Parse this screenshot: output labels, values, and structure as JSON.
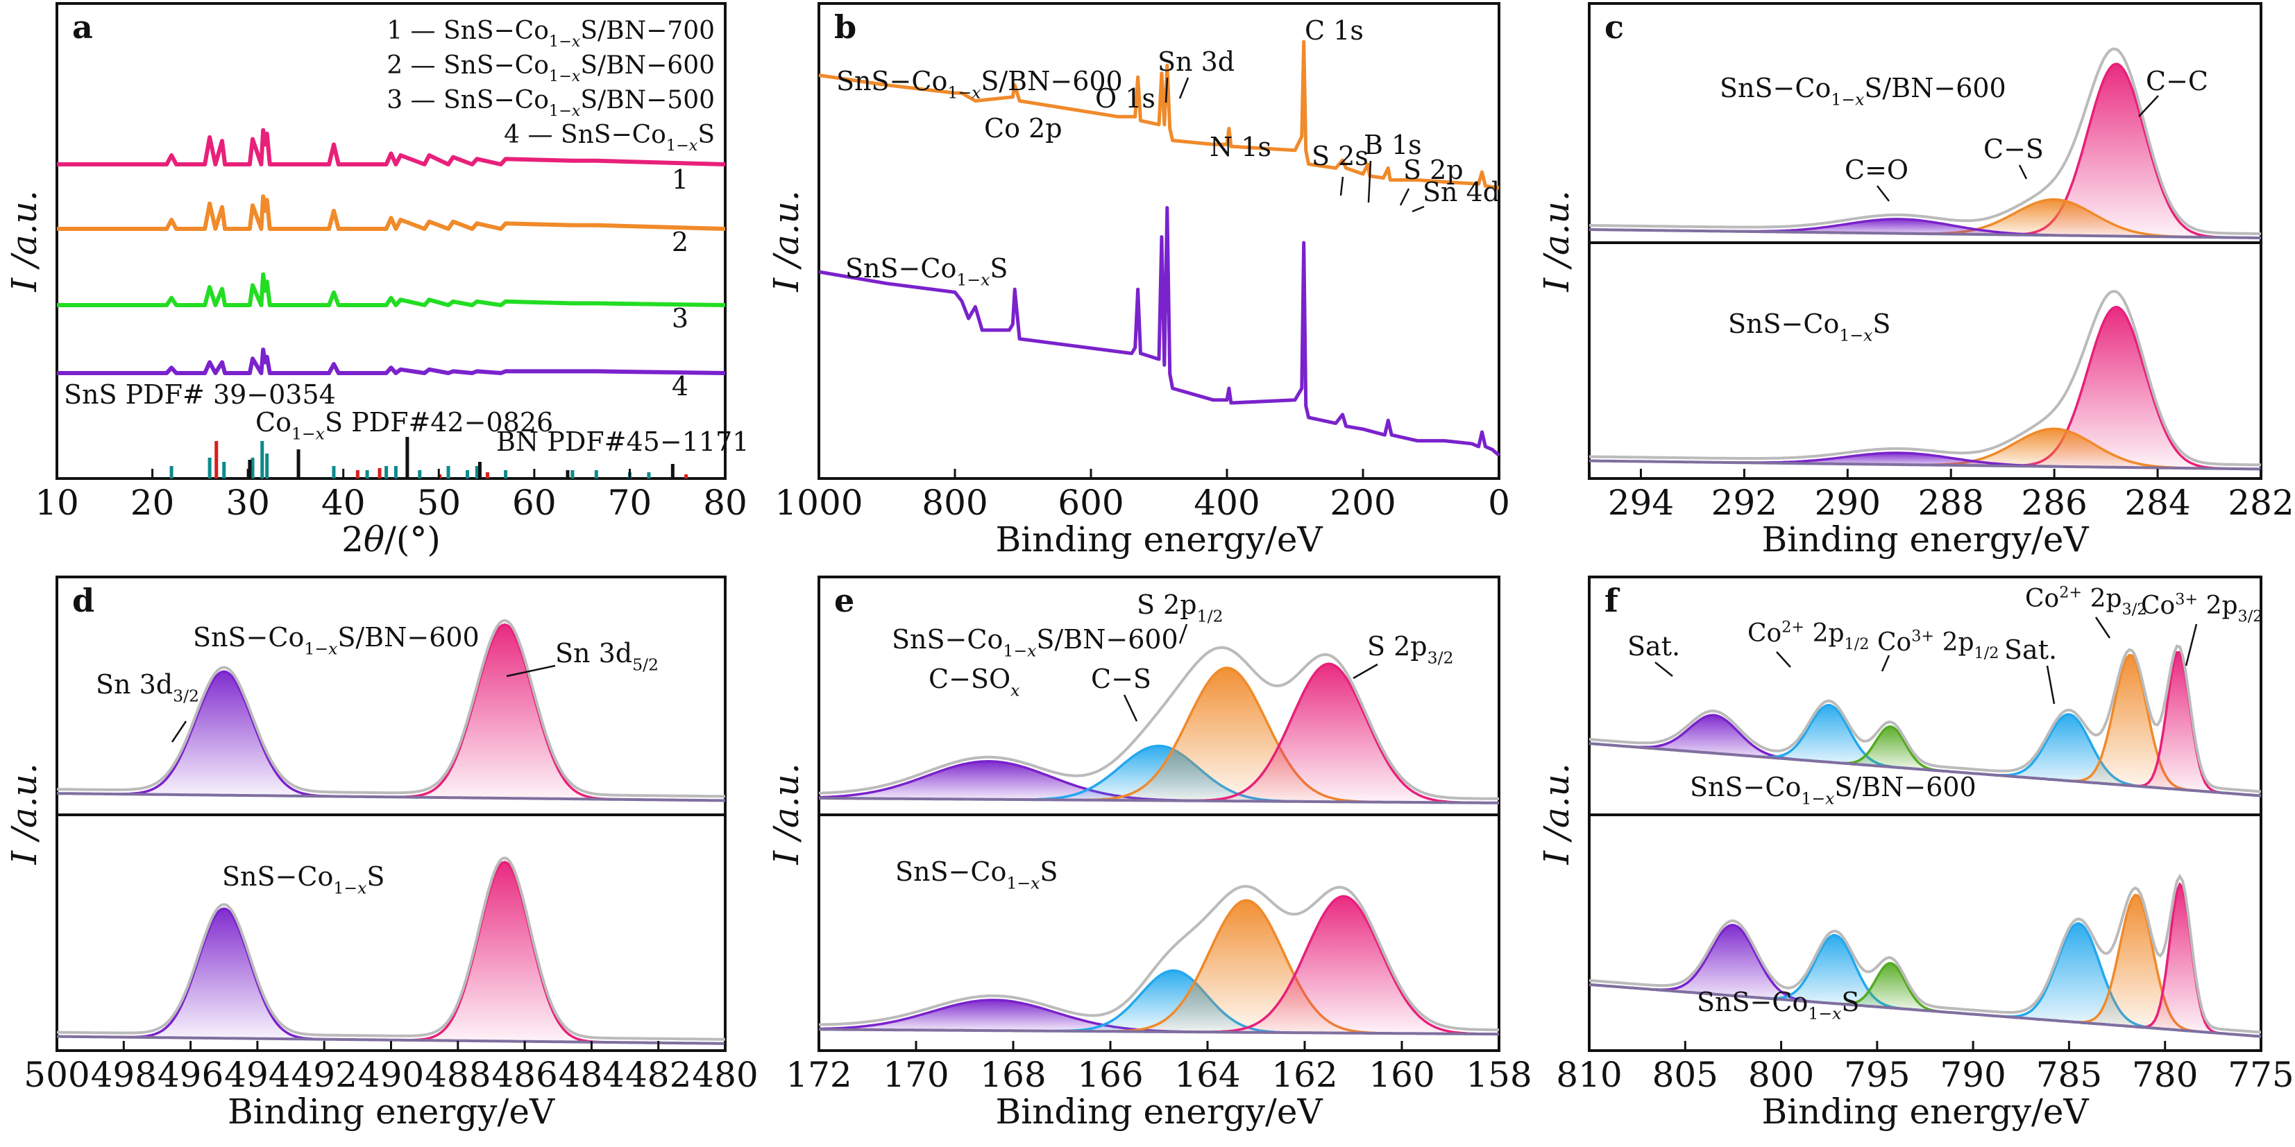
{
  "chart_data": [
    {
      "id": "a",
      "type": "line",
      "panel_label": "a",
      "xlabel": "2θ/(°)",
      "ylabel": "I /a.u.",
      "xlim": [
        10,
        80
      ],
      "xticks": [
        10,
        20,
        30,
        40,
        50,
        60,
        70,
        80
      ],
      "legend": [
        "1 — SnS−Co1−xS/BN−700",
        "2 — SnS−Co1−xS/BN−600",
        "3 — SnS−Co1−xS/BN−500",
        "4 — SnS−Co1−xS"
      ],
      "series": [
        {
          "name": "SnS−Co1−xS/BN−700",
          "label": "1",
          "color": "#e8207a",
          "x": [
            10,
            21.5,
            22,
            22.5,
            25.5,
            26,
            26.6,
            27.3,
            27.6,
            30.2,
            30.5,
            31.4,
            31.6,
            31.8,
            32,
            32.3,
            38.5,
            39,
            39.5,
            44.5,
            45,
            45.5,
            46,
            48.5,
            49,
            51,
            51.5,
            53.5,
            54,
            56.5,
            57,
            64,
            66.5,
            80
          ],
          "y": [
            0,
            0,
            5,
            0,
            0,
            15,
            0,
            13,
            0,
            0,
            14,
            0,
            19,
            11,
            17,
            0,
            0,
            11,
            0,
            0,
            6,
            0,
            5,
            0,
            5,
            0,
            4,
            0,
            3,
            0,
            3,
            2,
            2,
            0
          ]
        },
        {
          "name": "SnS−Co1−xS/BN−600",
          "label": "2",
          "color": "#f08a2a",
          "x": [
            10,
            21.5,
            22,
            22.5,
            25.5,
            26,
            26.6,
            27.3,
            27.6,
            30.2,
            30.5,
            31.4,
            31.6,
            31.8,
            32,
            32.3,
            38.5,
            39,
            39.5,
            44.5,
            45,
            45.5,
            46,
            48.5,
            49,
            51,
            51.5,
            53.5,
            54,
            56.5,
            57,
            64,
            66.5,
            80
          ],
          "y": [
            0,
            0,
            5,
            0,
            0,
            14,
            0,
            12,
            0,
            0,
            13,
            0,
            18,
            10,
            16,
            0,
            0,
            10,
            0,
            0,
            6,
            0,
            5,
            0,
            4,
            0,
            4,
            0,
            3,
            0,
            3,
            2,
            2,
            0
          ]
        },
        {
          "name": "SnS−Co1−xS/BN−500",
          "label": "3",
          "color": "#22dd22",
          "x": [
            10,
            21.5,
            22,
            22.5,
            25.5,
            26,
            26.6,
            27.3,
            27.6,
            30.2,
            30.5,
            31.4,
            31.6,
            31.8,
            32,
            32.3,
            38.5,
            39,
            39.5,
            44.5,
            45,
            45.5,
            46,
            48.5,
            49,
            51,
            51.5,
            53.5,
            54,
            56.5,
            57,
            64,
            66.5,
            80
          ],
          "y": [
            0,
            0,
            4,
            0,
            0,
            10,
            0,
            9,
            0,
            0,
            11,
            0,
            17,
            8,
            13,
            0,
            0,
            7,
            0,
            0,
            4,
            0,
            3,
            0,
            3,
            0,
            2,
            0,
            2,
            0,
            2,
            1,
            1,
            0
          ]
        },
        {
          "name": "SnS−Co1−xS",
          "label": "4",
          "color": "#7a22cc",
          "x": [
            10,
            21.5,
            22,
            22.5,
            25.5,
            26,
            26.6,
            27.3,
            27.6,
            30.2,
            30.5,
            31.4,
            31.6,
            31.8,
            32,
            32.3,
            38.5,
            39,
            39.5,
            44.5,
            45,
            45.5,
            46,
            48.5,
            49,
            51,
            51.5,
            53.5,
            54,
            56.5,
            57,
            64,
            66.5,
            80
          ],
          "y": [
            0,
            0,
            3,
            0,
            0,
            6,
            0,
            6,
            0,
            0,
            8,
            0,
            13,
            6,
            9,
            0,
            0,
            5,
            0,
            0,
            3,
            0,
            2,
            0,
            2,
            0,
            1,
            0,
            1,
            0,
            1,
            1,
            1,
            0
          ]
        }
      ],
      "references": [
        {
          "name": "SnS PDF# 39−0354",
          "color": "#0e8a8a",
          "positions": [
            22,
            26,
            27.5,
            30.5,
            31.5,
            32,
            39,
            42.5,
            44.5,
            45.5,
            48,
            51,
            53,
            54,
            57,
            64,
            66.5,
            70,
            72
          ],
          "heights": [
            0.3,
            0.5,
            0.4,
            0.5,
            0.9,
            0.6,
            0.3,
            0.2,
            0.3,
            0.3,
            0.2,
            0.3,
            0.2,
            0.3,
            0.2,
            0.2,
            0.2,
            0.15,
            0.15
          ]
        },
        {
          "name": "Co1−xS PDF#42−0826",
          "color": "#111111",
          "positions": [
            30.2,
            35.3,
            46.7,
            54.3,
            63.5,
            74.5
          ],
          "heights": [
            0.45,
            0.7,
            1.0,
            0.4,
            0.2,
            0.35
          ]
        },
        {
          "name": "BN PDF#45−1171",
          "color": "#d81e1e",
          "positions": [
            26.7,
            41.5,
            43.8,
            50.1,
            55.1,
            75.9
          ],
          "heights": [
            0.9,
            0.2,
            0.25,
            0.1,
            0.15,
            0.1
          ]
        }
      ]
    },
    {
      "id": "b",
      "type": "line",
      "panel_label": "b",
      "xlabel": "Binding energy/eV",
      "ylabel": "I /a.u.",
      "xlim": [
        1000,
        0
      ],
      "xticks": [
        1000,
        800,
        600,
        400,
        200,
        0
      ],
      "series": [
        {
          "name": "SnS−Co1−xS/BN−600",
          "color": "#f08a2a",
          "x": [
            1000,
            900,
            800,
            790,
            780,
            770,
            715,
            712,
            705,
            560,
            535,
            531,
            527,
            500,
            496,
            492,
            488,
            484,
            480,
            420,
            400,
            397,
            394,
            300,
            290,
            287,
            284,
            280,
            240,
            230,
            225,
            200,
            193,
            190,
            170,
            163,
            160,
            140,
            120,
            80,
            30,
            25,
            20,
            0
          ],
          "y": [
            0.83,
            0.78,
            0.74,
            0.74,
            0.72,
            0.7,
            0.72,
            0.78,
            0.7,
            0.62,
            0.62,
            0.82,
            0.6,
            0.58,
            0.84,
            0.58,
            0.88,
            0.56,
            0.5,
            0.48,
            0.48,
            0.56,
            0.47,
            0.45,
            0.52,
            1.0,
            0.45,
            0.38,
            0.36,
            0.4,
            0.36,
            0.33,
            0.38,
            0.32,
            0.31,
            0.36,
            0.3,
            0.3,
            0.3,
            0.29,
            0.28,
            0.34,
            0.27,
            0.26
          ]
        },
        {
          "name": "SnS−Co1−xS",
          "color": "#7a22cc",
          "x": [
            1000,
            900,
            800,
            790,
            780,
            770,
            760,
            720,
            715,
            712,
            705,
            540,
            535,
            531,
            527,
            500,
            496,
            492,
            488,
            484,
            480,
            420,
            400,
            397,
            394,
            300,
            290,
            287,
            284,
            280,
            240,
            230,
            225,
            200,
            168,
            163,
            158,
            120,
            80,
            40,
            30,
            25,
            20,
            10,
            0
          ],
          "y": [
            0.4,
            0.36,
            0.33,
            0.3,
            0.24,
            0.28,
            0.2,
            0.2,
            0.22,
            0.34,
            0.17,
            0.12,
            0.14,
            0.34,
            0.12,
            0.1,
            0.52,
            0.08,
            0.62,
            0.05,
            0.0,
            -0.04,
            -0.04,
            0.0,
            -0.05,
            -0.04,
            0.0,
            0.5,
            -0.06,
            -0.1,
            -0.12,
            -0.09,
            -0.13,
            -0.14,
            -0.16,
            -0.11,
            -0.16,
            -0.18,
            -0.18,
            -0.19,
            -0.2,
            -0.15,
            -0.2,
            -0.21,
            -0.23
          ]
        }
      ]
    },
    {
      "id": "c",
      "type": "area",
      "panel_label": "c",
      "xlabel": "Binding energy/eV",
      "ylabel": "I /a.u.",
      "xlim": [
        295,
        282
      ],
      "xticks": [
        294,
        292,
        290,
        288,
        286,
        284,
        282
      ],
      "subplots": [
        {
          "sample": "SnS−Co1−xS/BN−600",
          "components": [
            {
              "label": "C−C",
              "center": 284.8,
              "fwhm": 1.3,
              "height": 0.72,
              "color": "#e8207a"
            },
            {
              "label": "C−S",
              "center": 286.0,
              "fwhm": 1.8,
              "height": 0.15,
              "color": "#f08a2a"
            },
            {
              "label": "C=O",
              "center": 289.0,
              "fwhm": 2.4,
              "height": 0.06,
              "color": "#7a22cc"
            }
          ]
        },
        {
          "sample": "SnS−Co1−xS",
          "components": [
            {
              "label": "C−C",
              "center": 284.8,
              "fwhm": 1.3,
              "height": 0.68,
              "color": "#e8207a"
            },
            {
              "label": "C−S",
              "center": 286.0,
              "fwhm": 1.8,
              "height": 0.16,
              "color": "#f08a2a"
            },
            {
              "label": "C=O",
              "center": 289.0,
              "fwhm": 2.4,
              "height": 0.05,
              "color": "#7a22cc"
            }
          ]
        }
      ]
    },
    {
      "id": "d",
      "type": "area",
      "panel_label": "d",
      "xlabel": "Binding energy/eV",
      "ylabel": "I /a.u.",
      "xlim": [
        500,
        480
      ],
      "xticks": [
        500,
        498,
        496,
        494,
        492,
        490,
        488,
        486,
        484,
        482,
        480
      ],
      "subplots": [
        {
          "sample": "SnS−Co1−xS/BN−600",
          "components": [
            {
              "label": "Sn 3d3/2",
              "center": 495.0,
              "fwhm": 2.0,
              "height": 0.52,
              "color": "#7a22cc"
            },
            {
              "label": "Sn 3d5/2",
              "center": 486.6,
              "fwhm": 2.0,
              "height": 0.73,
              "color": "#e8207a"
            }
          ]
        },
        {
          "sample": "SnS−Co1−xS",
          "components": [
            {
              "label": "Sn 3d3/2",
              "center": 495.0,
              "fwhm": 1.8,
              "height": 0.55,
              "color": "#7a22cc"
            },
            {
              "label": "Sn 3d5/2",
              "center": 486.6,
              "fwhm": 1.8,
              "height": 0.76,
              "color": "#e8207a"
            }
          ]
        }
      ]
    },
    {
      "id": "e",
      "type": "area",
      "panel_label": "e",
      "xlabel": "Binding energy/eV",
      "ylabel": "I /a.u.",
      "xlim": [
        172,
        158
      ],
      "xticks": [
        172,
        170,
        168,
        166,
        164,
        162,
        160,
        158
      ],
      "subplots": [
        {
          "sample": "SnS−Co1−xS/BN−600",
          "components": [
            {
              "label": "C−SOx",
              "center": 168.5,
              "fwhm": 3.0,
              "height": 0.16,
              "color": "#7a22cc"
            },
            {
              "label": "C−S",
              "center": 165.0,
              "fwhm": 1.9,
              "height": 0.23,
              "color": "#22a8ee"
            },
            {
              "label": "S 2p1/2",
              "center": 163.6,
              "fwhm": 1.9,
              "height": 0.56,
              "color": "#f08a2a"
            },
            {
              "label": "S 2p3/2",
              "center": 161.5,
              "fwhm": 1.8,
              "height": 0.58,
              "color": "#e8207a"
            }
          ]
        },
        {
          "sample": "SnS−Co1−xS",
          "components": [
            {
              "label": "C−SOx",
              "center": 168.4,
              "fwhm": 3.0,
              "height": 0.13,
              "color": "#7a22cc"
            },
            {
              "label": "C−S",
              "center": 164.7,
              "fwhm": 1.6,
              "height": 0.26,
              "color": "#22a8ee"
            },
            {
              "label": "S 2p1/2",
              "center": 163.2,
              "fwhm": 1.8,
              "height": 0.56,
              "color": "#f08a2a"
            },
            {
              "label": "S 2p3/2",
              "center": 161.2,
              "fwhm": 1.8,
              "height": 0.58,
              "color": "#e8207a"
            }
          ]
        }
      ]
    },
    {
      "id": "f",
      "type": "area",
      "panel_label": "f",
      "xlabel": "Binding energy/eV",
      "ylabel": "I /a.u.",
      "xlim": [
        810,
        775
      ],
      "xticks": [
        810,
        805,
        800,
        795,
        790,
        785,
        780,
        775
      ],
      "subplots": [
        {
          "sample": "SnS−Co1−xS/BN−600",
          "components": [
            {
              "label": "Sat.",
              "center": 803.5,
              "fwhm": 3.0,
              "height": 0.16,
              "color": "#7a22cc"
            },
            {
              "label": "Co2+ 2p1/2",
              "center": 797.5,
              "fwhm": 2.4,
              "height": 0.24,
              "color": "#22a8ee"
            },
            {
              "label": "Co3+ 2p1/2",
              "center": 794.3,
              "fwhm": 1.8,
              "height": 0.17,
              "color": "#55aa22"
            },
            {
              "label": "Sat.",
              "center": 785.0,
              "fwhm": 2.6,
              "height": 0.28,
              "color": "#22a8ee"
            },
            {
              "label": "Co2+ 2p3/2",
              "center": 781.8,
              "fwhm": 2.0,
              "height": 0.55,
              "color": "#f08a2a"
            },
            {
              "label": "Co3+ 2p3/2",
              "center": 779.3,
              "fwhm": 1.4,
              "height": 0.58,
              "color": "#e8207a"
            }
          ]
        },
        {
          "sample": "SnS−Co1−xS",
          "components": [
            {
              "label": "Sat.",
              "center": 802.5,
              "fwhm": 2.8,
              "height": 0.3,
              "color": "#7a22cc"
            },
            {
              "label": "Co2+ 2p1/2",
              "center": 797.2,
              "fwhm": 2.4,
              "height": 0.29,
              "color": "#22a8ee"
            },
            {
              "label": "Co3+ 2p1/2",
              "center": 794.3,
              "fwhm": 1.8,
              "height": 0.19,
              "color": "#55aa22"
            },
            {
              "label": "Sat.",
              "center": 784.5,
              "fwhm": 2.6,
              "height": 0.42,
              "color": "#22a8ee"
            },
            {
              "label": "Co2+ 2p3/2",
              "center": 781.5,
              "fwhm": 2.0,
              "height": 0.56,
              "color": "#f08a2a"
            },
            {
              "label": "Co3+ 2p3/2",
              "center": 779.2,
              "fwhm": 1.3,
              "height": 0.62,
              "color": "#e8207a"
            }
          ]
        }
      ]
    }
  ],
  "annotations": {
    "a": {
      "ref_sns": "SnS PDF# 39−0354",
      "ref_co": "Co1−xS PDF#42−0826",
      "ref_bn": "BN PDF#45−1171"
    },
    "b": {
      "sample_top": "SnS−Co1−xS/BN−600",
      "sample_bottom": "SnS−Co1−xS",
      "co2p": "Co 2p",
      "o1s": "O 1s",
      "sn3d": "Sn 3d",
      "n1s": "N 1s",
      "c1s": "C 1s",
      "s2s": "S 2s",
      "b1s": "B 1s",
      "s2p": "S 2p",
      "sn4d": "Sn 4d"
    },
    "c": {
      "sample_top": "SnS−Co1−xS/BN−600",
      "sample_bottom": "SnS−Co1−xS",
      "cc": "C−C",
      "cs": "C−S",
      "co": "C=O"
    },
    "d": {
      "sample_top": "SnS−Co1−xS/BN−600",
      "sample_bottom": "SnS−Co1−xS",
      "sn32": "Sn 3d3/2",
      "sn52": "Sn 3d5/2"
    },
    "e": {
      "sample_top": "SnS−Co1−xS/BN−600",
      "sample_bottom": "SnS−Co1−xS",
      "cso": "C−SOx",
      "cs": "C−S",
      "s2p12": "S 2p1/2",
      "s2p32": "S 2p3/2"
    },
    "f": {
      "sample_top": "SnS−Co1−xS/BN−600",
      "sample_bottom": "SnS−Co1−xS",
      "sat1": "Sat.",
      "co2p12": "Co2+ 2p1/2",
      "co3p12": "Co3+ 2p1/2",
      "sat2": "Sat.",
      "co2p32": "Co2+ 2p3/2",
      "co3p32": "Co3+ 2p3/2"
    }
  }
}
